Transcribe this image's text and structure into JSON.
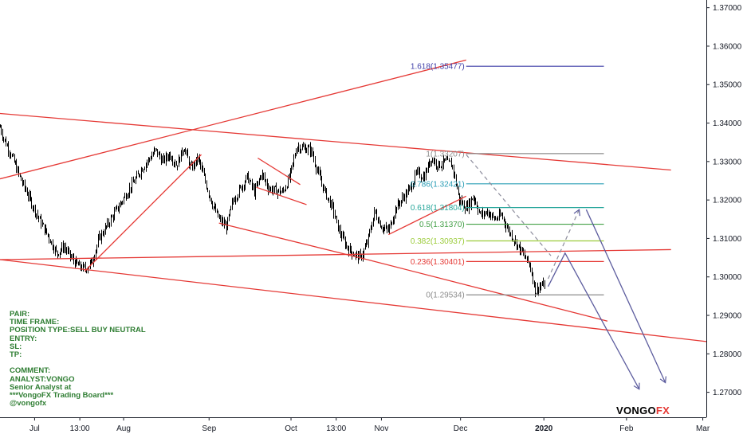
{
  "chart_data": {
    "type": "candlestick",
    "instrument_hint": "GBPUSD-like",
    "y_axis": {
      "ylim": [
        1.2635,
        1.372
      ],
      "ticks": [
        "1.37000",
        "1.36000",
        "1.35000",
        "1.34000",
        "1.33000",
        "1.32000",
        "1.31000",
        "1.30000",
        "1.29000",
        "1.28000",
        "1.27000"
      ]
    },
    "x_axis": {
      "ticks": [
        "Jul",
        "13:00",
        "Aug",
        "Sep",
        "Oct",
        "13:00",
        "Nov",
        "Dec",
        "2020",
        "Feb",
        "Mar"
      ],
      "bold_ticks": [
        "2020"
      ]
    },
    "price_path": [
      [
        0.0,
        1.339
      ],
      [
        0.5,
        1.336
      ],
      [
        1.5,
        1.332
      ],
      [
        3,
        1.325
      ],
      [
        4,
        1.321
      ],
      [
        5.5,
        1.315
      ],
      [
        7,
        1.31
      ],
      [
        8,
        1.306
      ],
      [
        9,
        1.308
      ],
      [
        10,
        1.305
      ],
      [
        11,
        1.303
      ],
      [
        12,
        1.302
      ],
      [
        13,
        1.304
      ],
      [
        14,
        1.31
      ],
      [
        16,
        1.316
      ],
      [
        18,
        1.322
      ],
      [
        20,
        1.328
      ],
      [
        22,
        1.333
      ],
      [
        23,
        1.33
      ],
      [
        24,
        1.332
      ],
      [
        25,
        1.329
      ],
      [
        26,
        1.334
      ],
      [
        27,
        1.328
      ],
      [
        28,
        1.331
      ],
      [
        29,
        1.325
      ],
      [
        30,
        1.319
      ],
      [
        31,
        1.315
      ],
      [
        32,
        1.313
      ],
      [
        33,
        1.32
      ],
      [
        35,
        1.326
      ],
      [
        36,
        1.322
      ],
      [
        37,
        1.327
      ],
      [
        38,
        1.323
      ],
      [
        40,
        1.322
      ],
      [
        41,
        1.326
      ],
      [
        42,
        1.334
      ],
      [
        44,
        1.333
      ],
      [
        45,
        1.327
      ],
      [
        46,
        1.322
      ],
      [
        47,
        1.318
      ],
      [
        48,
        1.312
      ],
      [
        49,
        1.308
      ],
      [
        50,
        1.306
      ],
      [
        51,
        1.305
      ],
      [
        52,
        1.309
      ],
      [
        53,
        1.317
      ],
      [
        54,
        1.313
      ],
      [
        55,
        1.312
      ],
      [
        56,
        1.318
      ],
      [
        58,
        1.323
      ],
      [
        59,
        1.327
      ],
      [
        60,
        1.326
      ],
      [
        61,
        1.331
      ],
      [
        62,
        1.329
      ],
      [
        63,
        1.33
      ],
      [
        64,
        1.329
      ],
      [
        65,
        1.32
      ],
      [
        66,
        1.318
      ],
      [
        67,
        1.321
      ],
      [
        68,
        1.316
      ],
      [
        69,
        1.317
      ],
      [
        70,
        1.315
      ],
      [
        71,
        1.316
      ],
      [
        72,
        1.312
      ],
      [
        73,
        1.309
      ],
      [
        74,
        1.306
      ],
      [
        75,
        1.303
      ],
      [
        75.8,
        1.296
      ],
      [
        76.5,
        1.298
      ],
      [
        77.2,
        1.2975
      ]
    ],
    "trendlines": [
      {
        "color": "#e53935",
        "p1": [
          0,
          1.3255
        ],
        "p2": [
          66,
          1.3564
        ]
      },
      {
        "color": "#e53935",
        "p1": [
          0,
          1.3425
        ],
        "p2": [
          95,
          1.3278
        ]
      },
      {
        "color": "#e53935",
        "p1": [
          0,
          1.3045
        ],
        "p2": [
          95,
          1.3071
        ]
      },
      {
        "color": "#e53935",
        "p1": [
          0,
          1.3045
        ],
        "p2": [
          100,
          1.2832
        ]
      },
      {
        "color": "#e53935",
        "p1": [
          12,
          1.3015
        ],
        "p2": [
          28.5,
          1.3318
        ]
      },
      {
        "color": "#e53935",
        "p1": [
          31,
          1.314
        ],
        "p2": [
          52,
          1.3045
        ]
      },
      {
        "color": "#e53935",
        "p1": [
          36.5,
          1.3309
        ],
        "p2": [
          42.5,
          1.324
        ]
      },
      {
        "color": "#e53935",
        "p1": [
          36.3,
          1.3233
        ],
        "p2": [
          43.4,
          1.3188
        ]
      },
      {
        "color": "#e53935",
        "p1": [
          52,
          1.3045
        ],
        "p2": [
          86,
          1.2885
        ]
      },
      {
        "color": "#e53935",
        "p1": [
          55,
          1.311
        ],
        "p2": [
          66,
          1.321
        ]
      }
    ],
    "fib_levels": [
      {
        "ratio": "1.618",
        "label": "1.618(1.35477)",
        "price": 1.35477,
        "color": "#3f3fa8"
      },
      {
        "ratio": "1",
        "label": "1(1.33207)",
        "price": 1.33207,
        "color": "#8c8c8c"
      },
      {
        "ratio": "0.786",
        "label": "0.786(1.32421)",
        "price": 1.32421,
        "color": "#2a9db5"
      },
      {
        "ratio": "0.618",
        "label": "0.618(1.31804)",
        "price": 1.31804,
        "color": "#26a69a"
      },
      {
        "ratio": "0.5",
        "label": "0.5(1.31370)",
        "price": 1.3137,
        "color": "#43a047"
      },
      {
        "ratio": "0.382",
        "label": "0.382(1.30937)",
        "price": 1.30937,
        "color": "#9ccc3c"
      },
      {
        "ratio": "0.236",
        "label": "0.236(1.30401)",
        "price": 1.30401,
        "color": "#e53935"
      },
      {
        "ratio": "0",
        "label": "0(1.29534)",
        "price": 1.29534,
        "color": "#8c8c8c"
      }
    ],
    "fib_x_range": [
      66,
      85.5
    ],
    "projections": {
      "dashed": [
        {
          "from": [
            66,
            1.3318
          ],
          "to": [
            78,
            1.3055
          ]
        },
        {
          "from": [
            77.6,
            1.2995
          ],
          "to": [
            82,
            1.3175
          ]
        }
      ],
      "arrows": [
        {
          "points": [
            [
              77.6,
              1.2975
            ],
            [
              80,
              1.3062
            ],
            [
              90.5,
              1.2708
            ]
          ]
        },
        {
          "points": [
            [
              83,
              1.3175
            ],
            [
              94.2,
              1.2725
            ]
          ]
        }
      ]
    }
  },
  "info_box": {
    "lines": [
      "PAIR:",
      "TIME FRAME:",
      "POSITION TYPE:SELL BUY NEUTRAL",
      "ENTRY:",
      "SL:",
      "TP:",
      "",
      "COMMENT:",
      "ANALYST:VONGO",
      "Senior Analyst at",
      "***VongoFX Trading Board***",
      "@vongofx"
    ]
  },
  "brand": {
    "part1": "VONGO",
    "part2": "FX"
  },
  "colors": {
    "trendline": "#e53935",
    "candle": "#000000",
    "projection": "#5c5c9e",
    "info_text": "#2e7d32"
  }
}
